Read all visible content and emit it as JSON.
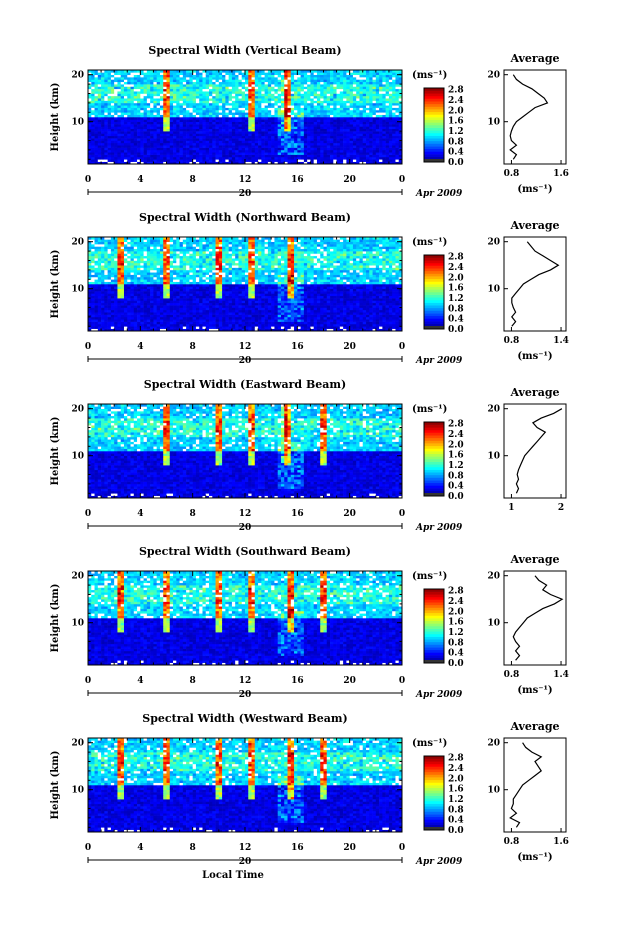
{
  "figure": {
    "colorbar_unit": "(ms⁻¹)",
    "colorbar_ticks": [
      "0.0",
      "0.4",
      "0.8",
      "1.2",
      "1.6",
      "2.0",
      "2.4",
      "2.8"
    ],
    "ylabel": "Height (km)",
    "y_ticks": [
      "10",
      "20"
    ],
    "x_ticks": [
      "0",
      "4",
      "8",
      "12",
      "16",
      "20",
      "0"
    ],
    "date_center": "20",
    "date_label": "Apr 2009",
    "xlabel": "Local Time",
    "avg_title": "Average",
    "avg_xlabel": "(ms⁻¹)"
  },
  "chart_data": [
    {
      "type": "heatmap",
      "title": "Spectral Width (Vertical Beam)",
      "x_range": [
        0,
        24
      ],
      "y_range": [
        1,
        21
      ],
      "colorbar_range": [
        0.0,
        2.8
      ],
      "highlight_times_local": [
        6,
        12.5,
        15.2
      ],
      "average_profile": {
        "title": "Average",
        "xlabel": "(ms⁻¹)",
        "x_ticks": [
          "0.8",
          "1.6"
        ],
        "xlim": [
          0.7,
          1.7
        ],
        "heights": [
          2,
          3,
          4,
          5,
          6,
          7,
          8,
          9,
          10,
          11,
          12,
          13,
          14,
          15,
          16,
          17,
          18,
          19,
          20
        ],
        "values": [
          0.85,
          0.9,
          0.8,
          0.9,
          0.82,
          0.8,
          0.82,
          0.85,
          0.9,
          1.0,
          1.1,
          1.2,
          1.4,
          1.35,
          1.25,
          1.15,
          1.0,
          0.9,
          0.85
        ]
      }
    },
    {
      "type": "heatmap",
      "title": "Spectral Width (Northward Beam)",
      "x_range": [
        0,
        24
      ],
      "y_range": [
        1,
        21
      ],
      "colorbar_range": [
        0.0,
        2.8
      ],
      "highlight_times_local": [
        2.5,
        6,
        10,
        12.5,
        15.5
      ],
      "average_profile": {
        "title": "Average",
        "xlabel": "(ms⁻¹)",
        "x_ticks": [
          "0.8",
          "1.4"
        ],
        "xlim": [
          0.7,
          1.5
        ],
        "heights": [
          2,
          3,
          4,
          5,
          6,
          7,
          8,
          9,
          10,
          11,
          12,
          13,
          14,
          15,
          16,
          17,
          18,
          19,
          20
        ],
        "values": [
          0.8,
          0.85,
          0.8,
          0.85,
          0.82,
          0.8,
          0.8,
          0.85,
          0.9,
          0.95,
          1.05,
          1.15,
          1.3,
          1.4,
          1.3,
          1.2,
          1.1,
          1.05,
          1.0
        ]
      }
    },
    {
      "type": "heatmap",
      "title": "Spectral Width (Eastward Beam)",
      "x_range": [
        0,
        24
      ],
      "y_range": [
        1,
        21
      ],
      "colorbar_range": [
        0.0,
        2.8
      ],
      "highlight_times_local": [
        6,
        10,
        12.5,
        15.2,
        18
      ],
      "average_profile": {
        "title": "Average",
        "xlabel": "",
        "x_ticks": [
          "1",
          "2"
        ],
        "xlim": [
          0.6,
          2.1
        ],
        "heights": [
          2,
          3,
          4,
          5,
          6,
          7,
          8,
          9,
          10,
          11,
          12,
          13,
          14,
          15,
          16,
          17,
          18,
          19,
          20
        ],
        "values": [
          0.9,
          0.95,
          0.9,
          0.95,
          0.92,
          0.95,
          1.0,
          1.05,
          1.1,
          1.2,
          1.3,
          1.4,
          1.5,
          1.6,
          1.4,
          1.3,
          1.5,
          1.8,
          2.0
        ]
      }
    },
    {
      "type": "heatmap",
      "title": "Spectral Width (Southward Beam)",
      "x_range": [
        0,
        24
      ],
      "y_range": [
        1,
        21
      ],
      "colorbar_range": [
        0.0,
        2.8
      ],
      "highlight_times_local": [
        2.5,
        6,
        10,
        12.5,
        15.5,
        18
      ],
      "average_profile": {
        "title": "Average",
        "xlabel": "(ms⁻¹)",
        "x_ticks": [
          "0.8",
          "1.4"
        ],
        "xlim": [
          0.7,
          1.5
        ],
        "heights": [
          2,
          3,
          4,
          5,
          6,
          7,
          8,
          9,
          10,
          11,
          12,
          13,
          14,
          15,
          16,
          17,
          18,
          19,
          20
        ],
        "values": [
          0.85,
          0.9,
          0.85,
          0.9,
          0.85,
          0.82,
          0.85,
          0.9,
          0.95,
          1.0,
          1.1,
          1.2,
          1.35,
          1.45,
          1.3,
          1.2,
          1.25,
          1.15,
          1.1
        ]
      }
    },
    {
      "type": "heatmap",
      "title": "Spectral Width (Westward Beam)",
      "x_range": [
        0,
        24
      ],
      "y_range": [
        1,
        21
      ],
      "colorbar_range": [
        0.0,
        2.8
      ],
      "highlight_times_local": [
        2.5,
        6,
        10,
        12.5,
        15.5,
        18
      ],
      "average_profile": {
        "title": "Average",
        "xlabel": "(ms⁻¹)",
        "x_ticks": [
          "0.8",
          "1.6"
        ],
        "xlim": [
          0.7,
          1.7
        ],
        "heights": [
          2,
          3,
          4,
          5,
          6,
          7,
          8,
          9,
          10,
          11,
          12,
          13,
          14,
          15,
          16,
          17,
          18,
          19,
          20
        ],
        "values": [
          0.9,
          0.95,
          0.8,
          0.9,
          0.82,
          0.85,
          0.85,
          0.9,
          0.95,
          1.0,
          1.1,
          1.2,
          1.3,
          1.25,
          1.2,
          1.3,
          1.15,
          1.05,
          1.0
        ]
      }
    }
  ]
}
